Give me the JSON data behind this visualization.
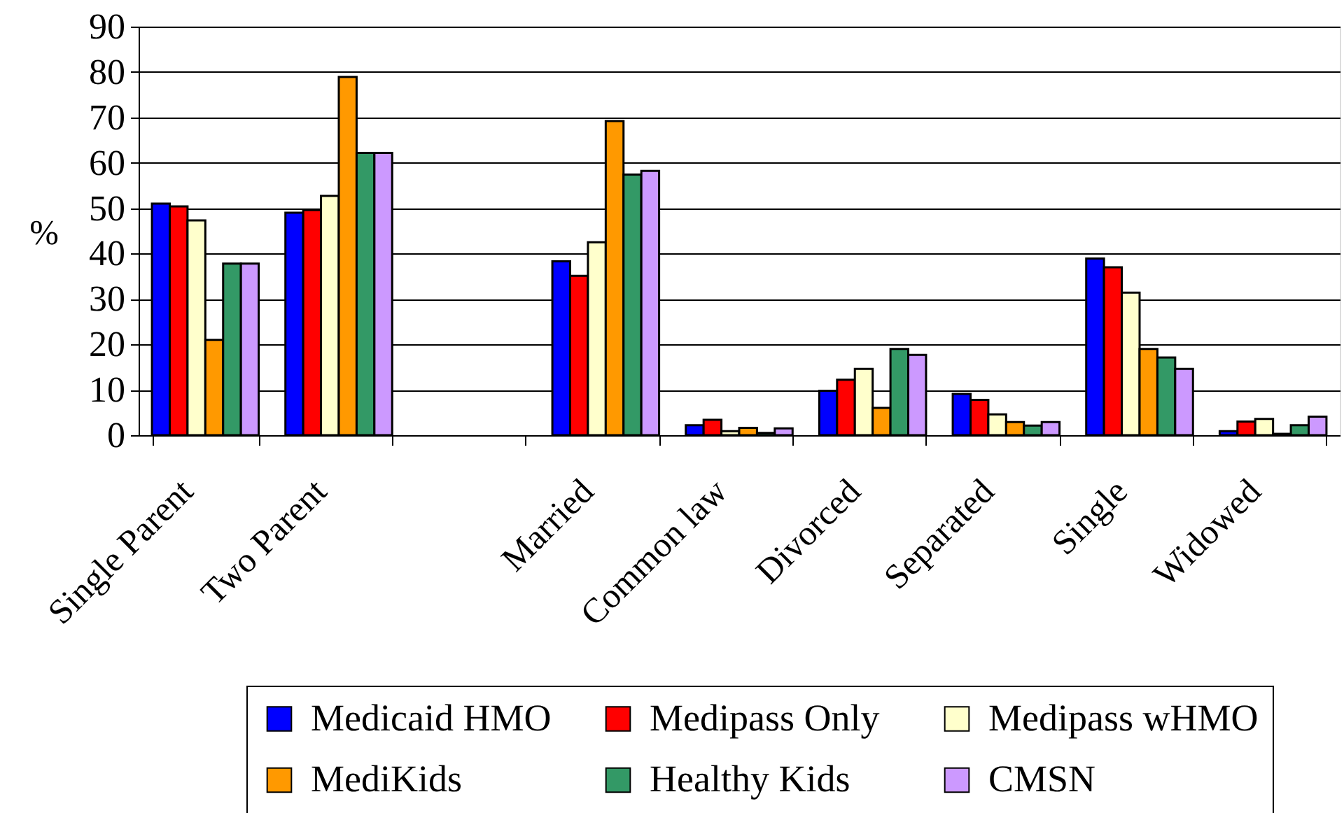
{
  "chart_data": {
    "type": "bar",
    "ylabel": "%",
    "categories": [
      "Single Parent",
      "Two Parent",
      null,
      "Married",
      "Common law",
      "Divorced",
      "Separated",
      "Single",
      "Widowed"
    ],
    "series": [
      {
        "name": "Medicaid HMO",
        "color": "#0000ff",
        "values": [
          51,
          49,
          null,
          38.3,
          2.2,
          9.8,
          9.1,
          38.9,
          0.9
        ]
      },
      {
        "name": "Medipass Only",
        "color": "#ff0000",
        "values": [
          50.4,
          49.6,
          null,
          35.1,
          3.4,
          12.2,
          7.8,
          37,
          3
        ]
      },
      {
        "name": "Medipass wHMO",
        "color": "#ffffcc",
        "values": [
          47.3,
          52.7,
          null,
          42.5,
          0.9,
          14.6,
          4.6,
          31.4,
          3.6
        ]
      },
      {
        "name": "MediKids",
        "color": "#ff9900",
        "values": [
          21,
          78.9,
          null,
          69.2,
          1.6,
          6,
          2.9,
          19,
          0.3
        ]
      },
      {
        "name": "Healthy Kids",
        "color": "#339966",
        "values": [
          37.8,
          62.2,
          null,
          57.4,
          0.5,
          19,
          2.1,
          17.1,
          2.2
        ]
      },
      {
        "name": "CMSN",
        "color": "#cc99ff",
        "values": [
          37.8,
          62.2,
          null,
          58.2,
          1.5,
          17.7,
          2.9,
          14.6,
          4.1
        ]
      }
    ],
    "ylim": [
      0,
      90
    ],
    "yticks": [
      0,
      10,
      20,
      30,
      40,
      50,
      60,
      70,
      80,
      90
    ],
    "grid": "y",
    "legend": "bottom"
  }
}
